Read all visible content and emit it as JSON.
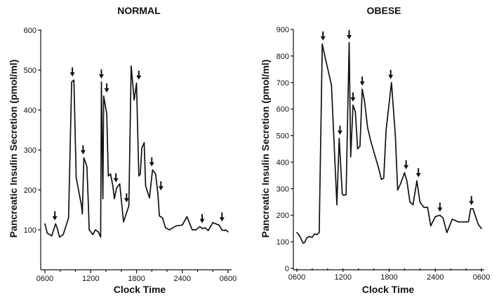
{
  "chart_data": [
    {
      "type": "line",
      "title": "NORMAL",
      "xlabel": "Clock Time",
      "ylabel": "Pancreatic Insulin Secretion (pmol/ml)",
      "x_tick_labels": [
        "0600",
        "1200",
        "1800",
        "2400",
        "0600"
      ],
      "x_tick_hours": [
        0,
        6,
        12,
        18,
        24
      ],
      "xlim": [
        0,
        24
      ],
      "ylim": [
        0,
        600
      ],
      "y_ticks": [
        100,
        200,
        300,
        400,
        500,
        600
      ],
      "y_tick_labels": [
        "100",
        "200",
        "300",
        "400",
        "500",
        "600"
      ],
      "x_unit": "hours after 0600",
      "series": [
        {
          "x": [
            0,
            0.3,
            0.9,
            1.4,
            1.6,
            1.9,
            2.4,
            3.1,
            3.5,
            3.8,
            4.1,
            4.8,
            4.9,
            5.1,
            5.4,
            5.5,
            5.7,
            5.8,
            6.3,
            6.6,
            7.0,
            7.3,
            7.4,
            7.6,
            7.7,
            8.1,
            8.3,
            8.6,
            8.9,
            9.1,
            9.4,
            9.8,
            10.3,
            11.0,
            11.3,
            11.7,
            12.0,
            12.3,
            12.5,
            12.7,
            13.0,
            13.2,
            13.7,
            14.1,
            14.5,
            14.8,
            15.0,
            15.4,
            15.8,
            16.3,
            17.2,
            18.0,
            18.6,
            19.3,
            19.8,
            20.3,
            20.6,
            21.0,
            21.4,
            22.0,
            22.8,
            23.2,
            23.5,
            23.7,
            24.0
          ],
          "y": [
            115,
            92,
            85,
            115,
            105,
            82,
            88,
            130,
            470,
            475,
            230,
            160,
            140,
            280,
            265,
            258,
            160,
            100,
            88,
            100,
            95,
            82,
            470,
            178,
            435,
            390,
            235,
            240,
            210,
            178,
            205,
            215,
            120,
            160,
            510,
            425,
            467,
            235,
            240,
            305,
            318,
            210,
            180,
            250,
            240,
            190,
            135,
            130,
            105,
            100,
            110,
            112,
            133,
            100,
            100,
            108,
            103,
            105,
            98,
            118,
            112,
            100,
            98,
            100,
            95
          ]
        }
      ],
      "arrows_x": [
        1.3,
        3.6,
        5.0,
        7.4,
        8.1,
        9.3,
        10.7,
        12.3,
        14.0,
        15.2,
        20.6,
        23.2
      ]
    },
    {
      "type": "line",
      "title": "OBESE",
      "xlabel": "Clock Time",
      "ylabel": "Pancreatic Insulin Secretion (pmol/ml)",
      "x_tick_labels": [
        "0600",
        "1200",
        "1800",
        "2400",
        "0600"
      ],
      "x_tick_hours": [
        0,
        6,
        12,
        18,
        24
      ],
      "xlim": [
        0,
        24
      ],
      "ylim": [
        0,
        900
      ],
      "y_ticks": [
        0,
        100,
        200,
        300,
        400,
        500,
        600,
        700,
        800,
        900
      ],
      "y_tick_labels": [
        "0",
        "100",
        "200",
        "300",
        "400",
        "500",
        "600",
        "700",
        "800",
        "900"
      ],
      "x_unit": "hours after 0600",
      "series": [
        {
          "x": [
            0,
            0.3,
            0.8,
            1.0,
            1.3,
            1.6,
            2.0,
            2.3,
            2.6,
            2.9,
            3.3,
            3.6,
            4.5,
            5.2,
            5.5,
            5.9,
            6.1,
            6.4,
            6.8,
            7.0,
            7.3,
            7.6,
            7.9,
            8.2,
            8.5,
            8.8,
            9.2,
            9.6,
            10.1,
            10.6,
            11.0,
            11.3,
            11.6,
            12.3,
            12.8,
            13.1,
            13.5,
            14.0,
            14.3,
            14.7,
            15.1,
            15.6,
            16.0,
            16.5,
            17.0,
            17.4,
            18.0,
            18.6,
            19.0,
            19.5,
            20.2,
            21.0,
            21.8,
            22.3,
            22.6,
            22.9,
            23.3,
            23.6,
            24.0
          ],
          "y": [
            135,
            125,
            95,
            97,
            115,
            120,
            117,
            130,
            127,
            135,
            845,
            805,
            690,
            240,
            490,
            280,
            275,
            278,
            850,
            420,
            615,
            590,
            450,
            460,
            675,
            630,
            530,
            480,
            430,
            380,
            335,
            340,
            520,
            700,
            500,
            295,
            320,
            360,
            330,
            250,
            240,
            330,
            250,
            230,
            230,
            160,
            195,
            200,
            190,
            135,
            185,
            175,
            175,
            175,
            225,
            225,
            190,
            165,
            150
          ]
        }
      ],
      "arrows_x": [
        3.4,
        5.6,
        6.8,
        7.3,
        8.5,
        12.2,
        14.2,
        15.8,
        18.6,
        22.7
      ]
    }
  ]
}
